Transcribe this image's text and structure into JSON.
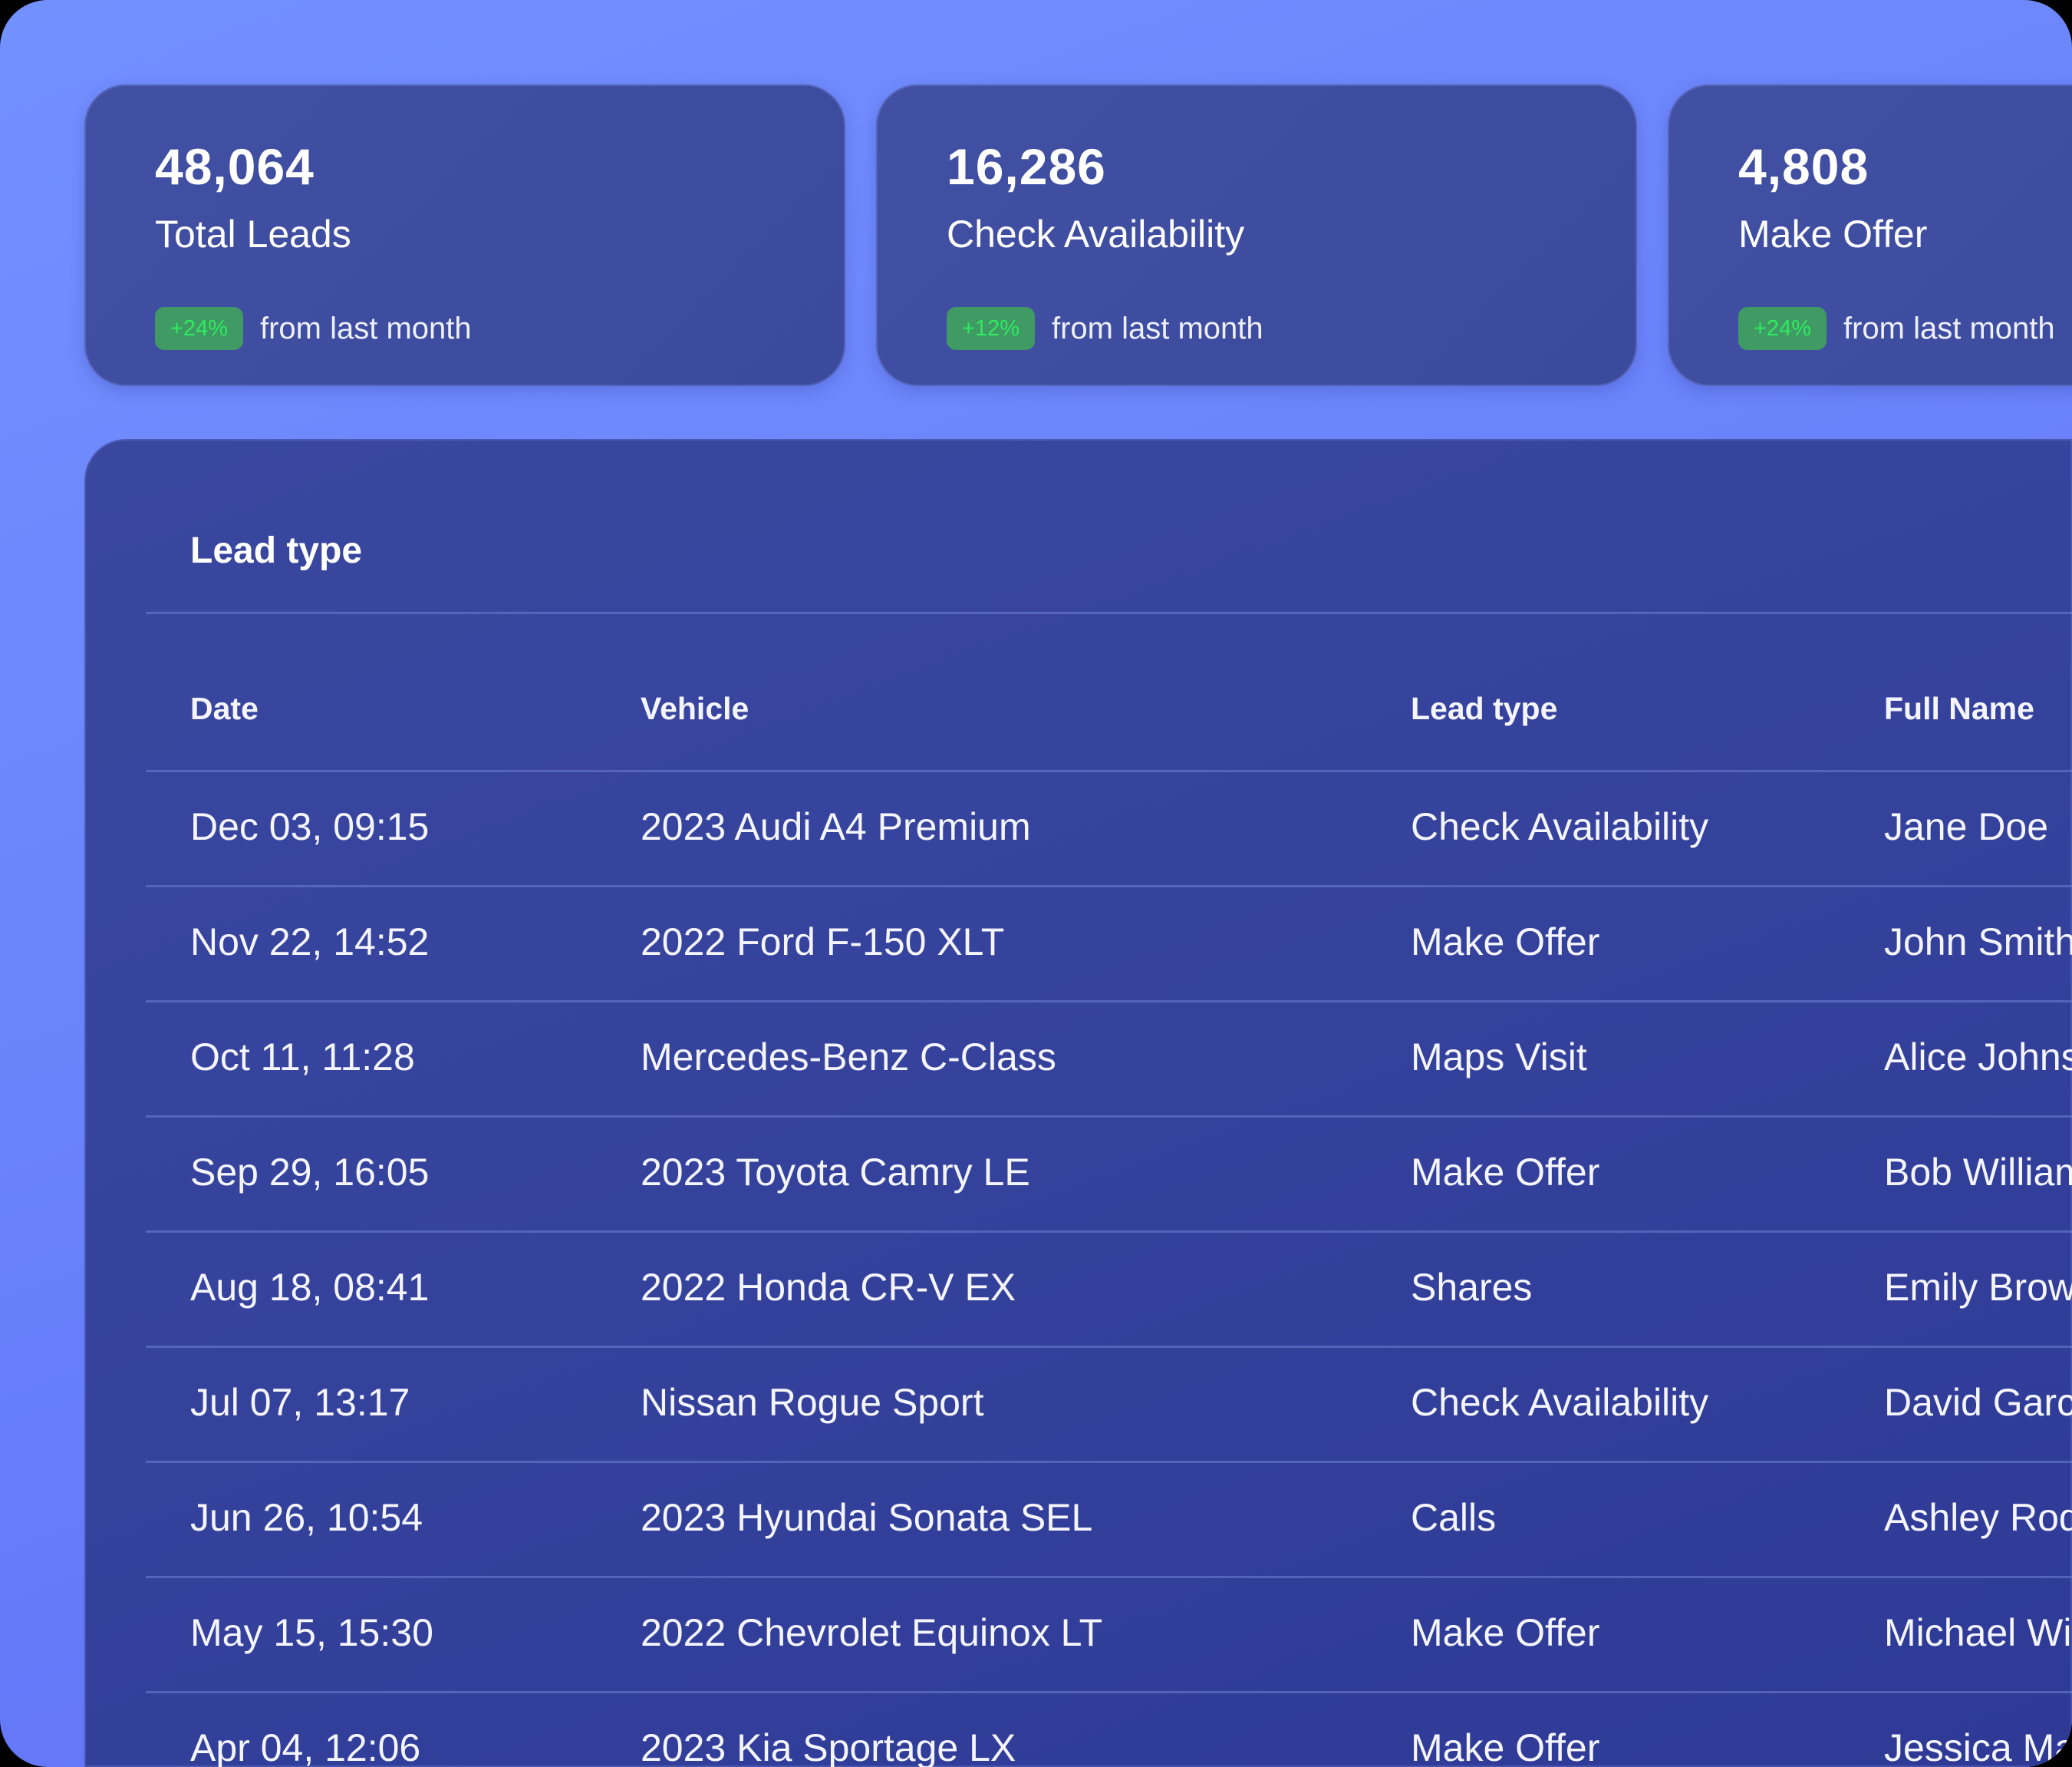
{
  "stats": [
    {
      "value": "48,064",
      "label": "Total Leads",
      "change": "+24%",
      "suffix": "from last month"
    },
    {
      "value": "16,286",
      "label": "Check Availability",
      "change": "+12%",
      "suffix": "from last month"
    },
    {
      "value": "4,808",
      "label": "Make Offer",
      "change": "+24%",
      "suffix": "from last month"
    }
  ],
  "colors": {
    "badge_bg": "#3f9a63",
    "badge_text": "#31ea62",
    "panel": "#36429b",
    "background": "#6a82fb"
  },
  "table": {
    "title": "Lead type",
    "columns": [
      "Date",
      "Vehicle",
      "Lead type",
      "Full Name"
    ],
    "rows": [
      [
        "Dec 03, 09:15",
        "2023 Audi A4 Premium",
        "Check Availability",
        "Jane Doe"
      ],
      [
        "Nov 22, 14:52",
        "2022 Ford F-150 XLT",
        "Make Offer",
        "John Smith"
      ],
      [
        "Oct 11, 11:28",
        "Mercedes-Benz C-Class",
        "Maps Visit",
        "Alice Johnson"
      ],
      [
        "Sep 29, 16:05",
        "2023 Toyota Camry LE",
        "Make Offer",
        "Bob Williams"
      ],
      [
        "Aug 18, 08:41",
        "2022 Honda CR-V EX",
        "Shares",
        "Emily Brown"
      ],
      [
        "Jul 07, 13:17",
        "Nissan Rogue Sport",
        "Check Availability",
        "David Garcia"
      ],
      [
        "Jun 26, 10:54",
        "2023 Hyundai Sonata SEL",
        "Calls",
        "Ashley Rodrigu"
      ],
      [
        "May 15, 15:30",
        "2022 Chevrolet Equinox LT",
        "Make Offer",
        "Michael Wilson"
      ],
      [
        "Apr 04, 12:06",
        "2023 Kia Sportage LX",
        "Make Offer",
        "Jessica Marti"
      ]
    ]
  }
}
